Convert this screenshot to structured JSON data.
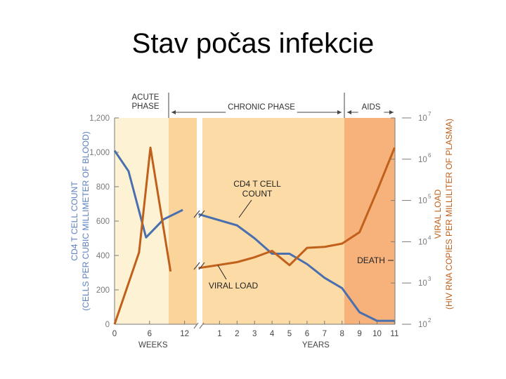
{
  "slide": {
    "title": "Stav počas infekcie"
  },
  "chart_data": {
    "type": "line",
    "phases": [
      {
        "label_lines": [
          "ACUTE",
          "PHASE"
        ],
        "x_start": 0,
        "x_end": 10,
        "color": "#fdf2d3"
      },
      {
        "label_lines": [
          "CHRONIC PHASE"
        ],
        "x_start": 10,
        "x_end": 27,
        "color": "#fcdba6"
      },
      {
        "label_lines": [
          "AIDS"
        ],
        "x_start": 27,
        "x_end": 29.5,
        "color": "#f6b27a"
      }
    ],
    "x_ticks": [
      {
        "pos": 0,
        "label": "0"
      },
      {
        "pos": 2,
        "label": "6"
      },
      {
        "pos": 4,
        "label": "12"
      },
      {
        "pos": 6,
        "label": "1"
      },
      {
        "pos": 7,
        "label": "2"
      },
      {
        "pos": 8,
        "label": "3"
      },
      {
        "pos": 9,
        "label": "4"
      },
      {
        "pos": 10,
        "label": "5"
      },
      {
        "pos": 11,
        "label": "6"
      },
      {
        "pos": 12,
        "label": "7"
      },
      {
        "pos": 13,
        "label": "8"
      },
      {
        "pos": 14,
        "label": "9"
      },
      {
        "pos": 15,
        "label": "10"
      },
      {
        "pos": 16,
        "label": "11"
      }
    ],
    "x_labels": {
      "weeks": "WEEKS",
      "years": "YEARS"
    },
    "y_left": {
      "label_lines": [
        "CD4 T CELL COUNT",
        "(CELLS PER CUBIC MILLIMETER OF BLOOD)"
      ],
      "ylim": [
        0,
        1200
      ],
      "ticks": [
        "0",
        "200",
        "400",
        "600",
        "800",
        "1,000",
        "1,200"
      ]
    },
    "y_right": {
      "label_lines": [
        "VIRAL LOAD",
        "(HIV RNA COPIES PER MILLILITER OF PLASMA)"
      ],
      "scale": "log",
      "ylim": [
        100,
        10000000
      ],
      "ticks": [
        {
          "base": "10",
          "exp": "2",
          "value": 100
        },
        {
          "base": "10",
          "exp": "3",
          "value": 1000
        },
        {
          "base": "10",
          "exp": "4",
          "value": 10000
        },
        {
          "base": "10",
          "exp": "5",
          "value": 100000
        },
        {
          "base": "10",
          "exp": "6",
          "value": 1000000
        },
        {
          "base": "10",
          "exp": "7",
          "value": 10000000
        }
      ]
    },
    "series": [
      {
        "name": "CD4 T CELL COUNT",
        "name_lines": [
          "CD4 T CELL",
          "COUNT"
        ],
        "axis": "left",
        "color": "#4a6fae",
        "x": [
          0,
          0.8,
          1.8,
          2.8,
          3.9,
          4.8,
          7.0,
          8.0,
          9.0,
          10.0,
          11.0,
          12.0,
          13.0,
          14.0,
          15.0,
          16.0
        ],
        "y": [
          1010,
          890,
          505,
          610,
          665,
          640,
          575,
          500,
          410,
          410,
          350,
          270,
          210,
          70,
          20,
          20
        ]
      },
      {
        "name": "VIRAL LOAD",
        "name_lines": [
          "VIRAL LOAD"
        ],
        "axis": "right",
        "color": "#c0601b",
        "x": [
          0,
          1.4,
          2.05,
          3.2,
          4.8,
          7.0,
          8.0,
          9.0,
          10.0,
          11.0,
          12.0,
          13.0,
          14.0,
          15.0,
          16.0
        ],
        "y": [
          100,
          5500,
          1900000,
          1900,
          2300,
          3200,
          4200,
          6000,
          2700,
          7100,
          7500,
          9000,
          17000,
          170000,
          1900000
        ]
      }
    ],
    "annotations": {
      "death": "DEATH"
    },
    "grid": false
  }
}
